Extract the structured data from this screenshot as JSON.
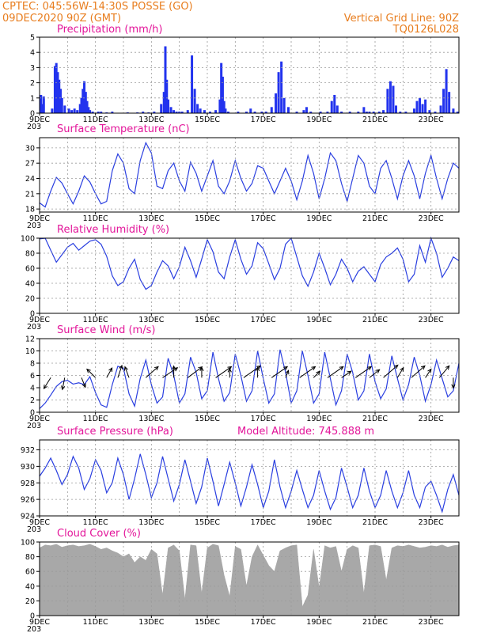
{
  "header": {
    "line1": "CPTEC:   045:56W-14:30S   POSSE (GO)",
    "line2": "09DEC2020 90Z (GMT)",
    "right1": "Vertical Grid Line: 90Z",
    "right2": "TQ0126L028"
  },
  "x_axis": {
    "day_start": 9,
    "day_end": 24,
    "tick_labels": [
      "9DEC",
      "11DEC",
      "13DEC",
      "15DEC",
      "17DEC",
      "19DEC",
      "21DEC",
      "23DEC"
    ],
    "tick_days": [
      9,
      11,
      13,
      15,
      17,
      19,
      21,
      23
    ],
    "corner_label": "203"
  },
  "chart_data": [
    {
      "id": "precip",
      "type": "bar",
      "title": "Precipitation (mm/h)",
      "ylim": [
        0,
        5
      ],
      "yticks": [
        0,
        1,
        2,
        3,
        4,
        5
      ],
      "color": "#2233ee",
      "x": [
        9.05,
        9.1,
        9.15,
        9.45,
        9.55,
        9.6,
        9.65,
        9.7,
        9.75,
        9.8,
        9.9,
        10.05,
        10.15,
        10.25,
        10.35,
        10.45,
        10.5,
        10.55,
        10.6,
        10.65,
        10.7,
        10.75,
        10.8,
        10.9,
        11.1,
        11.2,
        11.4,
        11.6,
        12.15,
        12.5,
        12.7,
        12.9,
        13.1,
        13.35,
        13.45,
        13.5,
        13.55,
        13.6,
        13.7,
        13.8,
        13.9,
        14.0,
        14.1,
        14.3,
        14.45,
        14.55,
        14.65,
        14.75,
        14.9,
        15.1,
        15.3,
        15.45,
        15.5,
        15.55,
        15.6,
        15.65,
        15.75,
        16.1,
        16.4,
        16.55,
        16.7,
        16.95,
        17.1,
        17.3,
        17.45,
        17.55,
        17.65,
        17.75,
        17.9,
        18.2,
        18.45,
        18.55,
        18.7,
        19.05,
        19.3,
        19.45,
        19.55,
        19.65,
        19.8,
        20.1,
        20.4,
        20.6,
        20.7,
        20.8,
        20.95,
        21.15,
        21.3,
        21.45,
        21.55,
        21.65,
        21.75,
        21.9,
        22.1,
        22.4,
        22.5,
        22.6,
        22.7,
        22.8,
        22.95,
        23.15,
        23.35,
        23.45,
        23.55,
        23.65,
        23.8,
        23.95
      ],
      "values": [
        1.2,
        0.6,
        1.1,
        0.3,
        3.1,
        3.3,
        2.7,
        2.2,
        1.6,
        1.0,
        0.5,
        0.3,
        0.2,
        0.3,
        0.2,
        0.6,
        1.0,
        1.6,
        2.1,
        1.4,
        0.8,
        0.4,
        0.2,
        0.1,
        0.1,
        0.1,
        0.05,
        0.1,
        0.05,
        0.05,
        0.1,
        0.05,
        0.1,
        0.6,
        1.4,
        4.4,
        2.2,
        0.9,
        0.4,
        0.2,
        0.1,
        0.1,
        0.1,
        0.2,
        3.8,
        1.6,
        0.6,
        0.3,
        0.2,
        0.1,
        0.2,
        0.9,
        3.3,
        2.4,
        0.8,
        0.3,
        0.1,
        0.1,
        0.1,
        0.3,
        0.1,
        0.1,
        0.1,
        0.4,
        1.3,
        2.7,
        3.4,
        1.0,
        0.4,
        0.1,
        0.2,
        0.4,
        0.1,
        0.1,
        0.1,
        0.8,
        1.2,
        0.5,
        0.1,
        0.1,
        0.1,
        0.4,
        0.1,
        0.1,
        0.1,
        0.1,
        0.2,
        1.6,
        2.1,
        1.8,
        0.5,
        0.1,
        0.1,
        0.3,
        0.8,
        1.0,
        0.6,
        0.9,
        0.2,
        0.1,
        0.5,
        1.6,
        2.9,
        1.4,
        0.3,
        0.1
      ]
    },
    {
      "id": "temp",
      "type": "line",
      "title": "Surface Temperature (nC)",
      "ylim": [
        17.4,
        32
      ],
      "yticks": [
        18,
        21,
        24,
        27,
        30
      ],
      "color": "#2a3fe0",
      "x": [
        9.0,
        9.2,
        9.4,
        9.6,
        9.8,
        10.0,
        10.2,
        10.4,
        10.6,
        10.8,
        11.0,
        11.2,
        11.4,
        11.6,
        11.8,
        12.0,
        12.2,
        12.4,
        12.6,
        12.8,
        13.0,
        13.2,
        13.4,
        13.6,
        13.8,
        14.0,
        14.2,
        14.4,
        14.6,
        14.8,
        15.0,
        15.2,
        15.4,
        15.6,
        15.8,
        16.0,
        16.2,
        16.4,
        16.6,
        16.8,
        17.0,
        17.2,
        17.4,
        17.6,
        17.8,
        18.0,
        18.2,
        18.4,
        18.6,
        18.8,
        19.0,
        19.2,
        19.4,
        19.6,
        19.8,
        20.0,
        20.2,
        20.4,
        20.6,
        20.8,
        21.0,
        21.2,
        21.4,
        21.6,
        21.8,
        22.0,
        22.2,
        22.4,
        22.6,
        22.8,
        23.0,
        23.2,
        23.4,
        23.6,
        23.8,
        24.0
      ],
      "values": [
        19.2,
        18.4,
        21.5,
        24.2,
        23.1,
        21.0,
        19.0,
        21.5,
        24.5,
        23.3,
        21.0,
        19.0,
        19.5,
        25.5,
        28.8,
        27.0,
        22.0,
        21.0,
        27.5,
        31.0,
        29.0,
        22.5,
        22.0,
        25.5,
        27.0,
        23.5,
        21.5,
        27.2,
        25.0,
        21.5,
        24.5,
        27.5,
        22.5,
        21.0,
        23.5,
        27.5,
        24.0,
        21.5,
        23.0,
        26.5,
        26.0,
        23.5,
        21.0,
        23.5,
        26.0,
        23.5,
        19.8,
        23.5,
        28.5,
        25.0,
        20.0,
        24.0,
        29.0,
        27.5,
        23.0,
        19.5,
        24.0,
        28.5,
        27.0,
        22.5,
        21.0,
        26.0,
        27.5,
        24.0,
        20.0,
        24.5,
        27.5,
        24.5,
        20.0,
        25.0,
        28.5,
        24.0,
        20.0,
        24.0,
        27.0,
        26.0
      ]
    },
    {
      "id": "rh",
      "type": "line",
      "title": "Relative Humidity (%)",
      "ylim": [
        0,
        100
      ],
      "yticks": [
        0,
        20,
        40,
        60,
        80,
        100
      ],
      "color": "#2a3fe0",
      "x": [
        9.0,
        9.2,
        9.4,
        9.6,
        9.8,
        10.0,
        10.2,
        10.4,
        10.6,
        10.8,
        11.0,
        11.2,
        11.4,
        11.6,
        11.8,
        12.0,
        12.2,
        12.4,
        12.6,
        12.8,
        13.0,
        13.2,
        13.4,
        13.6,
        13.8,
        14.0,
        14.2,
        14.4,
        14.6,
        14.8,
        15.0,
        15.2,
        15.4,
        15.6,
        15.8,
        16.0,
        16.2,
        16.4,
        16.6,
        16.8,
        17.0,
        17.2,
        17.4,
        17.6,
        17.8,
        18.0,
        18.2,
        18.4,
        18.6,
        18.8,
        19.0,
        19.2,
        19.4,
        19.6,
        19.8,
        20.0,
        20.2,
        20.4,
        20.6,
        20.8,
        21.0,
        21.2,
        21.4,
        21.6,
        21.8,
        22.0,
        22.2,
        22.4,
        22.6,
        22.8,
        23.0,
        23.2,
        23.4,
        23.6,
        23.8,
        24.0
      ],
      "values": [
        99,
        100,
        84,
        68,
        78,
        88,
        93,
        84,
        90,
        96,
        98,
        92,
        76,
        50,
        37,
        42,
        60,
        72,
        45,
        32,
        37,
        55,
        70,
        63,
        46,
        62,
        88,
        70,
        48,
        72,
        98,
        82,
        55,
        46,
        75,
        98,
        72,
        52,
        63,
        94,
        86,
        66,
        45,
        60,
        92,
        100,
        75,
        50,
        36,
        55,
        80,
        60,
        38,
        52,
        72,
        60,
        42,
        56,
        62,
        52,
        42,
        65,
        75,
        80,
        87,
        72,
        42,
        52,
        90,
        68,
        100,
        80,
        48,
        60,
        75,
        70
      ]
    },
    {
      "id": "wind",
      "type": "line",
      "title": "Surface Wind (m/s)",
      "ylim": [
        0,
        12
      ],
      "yticks": [
        0,
        2,
        4,
        6,
        8,
        10,
        12
      ],
      "color": "#2a3fe0",
      "x": [
        9.0,
        9.2,
        9.4,
        9.6,
        9.8,
        10.0,
        10.2,
        10.4,
        10.6,
        10.8,
        11.0,
        11.2,
        11.4,
        11.6,
        11.8,
        12.0,
        12.2,
        12.4,
        12.6,
        12.8,
        13.0,
        13.2,
        13.4,
        13.6,
        13.8,
        14.0,
        14.2,
        14.4,
        14.6,
        14.8,
        15.0,
        15.2,
        15.4,
        15.6,
        15.8,
        16.0,
        16.2,
        16.4,
        16.6,
        16.8,
        17.0,
        17.2,
        17.4,
        17.6,
        17.8,
        18.0,
        18.2,
        18.4,
        18.6,
        18.8,
        19.0,
        19.2,
        19.4,
        19.6,
        19.8,
        20.0,
        20.2,
        20.4,
        20.6,
        20.8,
        21.0,
        21.2,
        21.4,
        21.6,
        21.8,
        22.0,
        22.2,
        22.4,
        22.6,
        22.8,
        23.0,
        23.2,
        23.4,
        23.6,
        23.8,
        24.0
      ],
      "values": [
        0.6,
        1.5,
        2.8,
        4.2,
        5.0,
        5.2,
        4.6,
        4.8,
        4.5,
        5.8,
        3.2,
        1.2,
        0.8,
        4.5,
        7.5,
        7.2,
        3.0,
        1.0,
        5.5,
        8.5,
        4.5,
        1.5,
        2.5,
        8.8,
        6.0,
        1.5,
        3.0,
        9.0,
        6.5,
        2.2,
        3.5,
        9.8,
        5.5,
        1.8,
        3.2,
        9.5,
        6.0,
        1.8,
        3.5,
        10.0,
        5.5,
        1.5,
        3.0,
        10.2,
        6.5,
        1.5,
        3.5,
        10.0,
        6.0,
        1.5,
        3.0,
        9.8,
        5.5,
        1.2,
        3.5,
        9.5,
        6.5,
        2.0,
        3.5,
        9.5,
        5.0,
        2.2,
        3.8,
        9.2,
        5.5,
        2.0,
        4.5,
        9.0,
        6.0,
        1.8,
        4.5,
        8.5,
        5.5,
        2.5,
        3.5,
        8.0
      ]
    },
    {
      "id": "pressure",
      "type": "line",
      "title": "Surface Pressure (hPa)",
      "annotation": "Model Altitude: 745.888  m",
      "ylim": [
        924,
        933.2
      ],
      "yticks": [
        924,
        926,
        928,
        930,
        932
      ],
      "color": "#2a3fe0",
      "x": [
        9.0,
        9.2,
        9.4,
        9.6,
        9.8,
        10.0,
        10.2,
        10.4,
        10.6,
        10.8,
        11.0,
        11.2,
        11.4,
        11.6,
        11.8,
        12.0,
        12.2,
        12.4,
        12.6,
        12.8,
        13.0,
        13.2,
        13.4,
        13.6,
        13.8,
        14.0,
        14.2,
        14.4,
        14.6,
        14.8,
        15.0,
        15.2,
        15.4,
        15.6,
        15.8,
        16.0,
        16.2,
        16.4,
        16.6,
        16.8,
        17.0,
        17.2,
        17.4,
        17.6,
        17.8,
        18.0,
        18.2,
        18.4,
        18.6,
        18.8,
        19.0,
        19.2,
        19.4,
        19.6,
        19.8,
        20.0,
        20.2,
        20.4,
        20.6,
        20.8,
        21.0,
        21.2,
        21.4,
        21.6,
        21.8,
        22.0,
        22.2,
        22.4,
        22.6,
        22.8,
        23.0,
        23.2,
        23.4,
        23.6,
        23.8,
        24.0
      ],
      "values": [
        928.8,
        929.8,
        931.0,
        929.5,
        927.8,
        929.0,
        931.2,
        929.8,
        927.2,
        928.5,
        930.8,
        929.5,
        926.8,
        928.0,
        931.0,
        929.0,
        926.0,
        928.5,
        931.5,
        929.0,
        926.2,
        928.0,
        931.2,
        928.5,
        925.8,
        927.8,
        930.8,
        928.2,
        925.5,
        927.5,
        931.0,
        928.2,
        925.2,
        927.8,
        930.5,
        928.0,
        925.2,
        927.5,
        930.2,
        927.8,
        925.0,
        927.0,
        930.8,
        927.5,
        925.0,
        927.0,
        929.5,
        927.2,
        925.0,
        926.5,
        929.5,
        927.0,
        924.8,
        926.2,
        929.8,
        927.5,
        925.0,
        926.5,
        929.8,
        927.0,
        925.0,
        926.5,
        929.5,
        927.0,
        925.0,
        926.8,
        929.5,
        926.5,
        925.0,
        927.5,
        928.2,
        926.5,
        924.5,
        927.2,
        929.0,
        926.5
      ]
    },
    {
      "id": "cloud",
      "type": "area",
      "title": "Cloud Cover (%)",
      "ylim": [
        0,
        100
      ],
      "yticks": [
        0,
        20,
        40,
        60,
        80,
        100
      ],
      "color": "#a8a8a8",
      "x": [
        9.0,
        9.2,
        9.4,
        9.6,
        9.8,
        10.0,
        10.2,
        10.4,
        10.6,
        10.8,
        11.0,
        11.2,
        11.4,
        11.6,
        11.8,
        12.0,
        12.2,
        12.4,
        12.6,
        12.8,
        13.0,
        13.2,
        13.4,
        13.6,
        13.8,
        14.0,
        14.2,
        14.4,
        14.6,
        14.8,
        15.0,
        15.2,
        15.4,
        15.6,
        15.8,
        16.0,
        16.2,
        16.4,
        16.6,
        16.8,
        17.0,
        17.2,
        17.4,
        17.6,
        17.8,
        18.0,
        18.2,
        18.4,
        18.6,
        18.8,
        19.0,
        19.2,
        19.4,
        19.6,
        19.8,
        20.0,
        20.2,
        20.4,
        20.6,
        20.8,
        21.0,
        21.2,
        21.4,
        21.6,
        21.8,
        22.0,
        22.2,
        22.4,
        22.6,
        22.8,
        23.0,
        23.2,
        23.4,
        23.6,
        23.8,
        24.0
      ],
      "values": [
        92,
        96,
        95,
        97,
        93,
        95,
        96,
        94,
        95,
        97,
        94,
        90,
        92,
        88,
        85,
        80,
        84,
        72,
        80,
        75,
        90,
        84,
        28,
        92,
        96,
        88,
        22,
        96,
        95,
        30,
        92,
        97,
        95,
        55,
        26,
        94,
        90,
        40,
        80,
        96,
        82,
        68,
        60,
        88,
        92,
        95,
        96,
        12,
        28,
        90,
        38,
        95,
        92,
        94,
        60,
        90,
        95,
        92,
        30,
        95,
        96,
        94,
        48,
        92,
        95,
        94,
        96,
        94,
        92,
        93,
        95,
        94,
        96,
        93,
        95,
        96
      ]
    },
    {
      "id": "wind_direction_arrows",
      "type": "scatter",
      "x": [
        9.4,
        9.9,
        10.5,
        11.0,
        11.4,
        11.8,
        12.2,
        12.8,
        13.4,
        13.8,
        14.3,
        14.8,
        15.3,
        15.8,
        16.3,
        16.8,
        17.3,
        17.8,
        18.3,
        18.8,
        19.3,
        19.8,
        20.3,
        20.8,
        21.3,
        21.8,
        22.3,
        22.8,
        23.3,
        23.8
      ],
      "u": [
        -0.5,
        -0.2,
        0.4,
        -0.6,
        0.5,
        0.3,
        -0.3,
        0.9,
        0.9,
        0.0,
        0.8,
        0.0,
        1.0,
        0.0,
        1.0,
        0.0,
        1.0,
        0.2,
        1.0,
        0.3,
        1.0,
        0.6,
        1.0,
        0.5,
        0.8,
        0.3,
        0.8,
        0.2,
        0.5,
        0.0
      ],
      "v": [
        -0.8,
        -1.0,
        -1.0,
        0.6,
        0.9,
        0.9,
        0.8,
        0.8,
        0.6,
        0.9,
        0.6,
        0.8,
        0.7,
        0.9,
        0.7,
        0.9,
        0.7,
        0.5,
        0.7,
        0.3,
        0.7,
        0.4,
        0.7,
        0.4,
        0.7,
        0.5,
        0.7,
        0.3,
        0.6,
        -0.8
      ],
      "speed": [
        3.5,
        3.2,
        2.5,
        3.2,
        2.8,
        3.5,
        3.0,
        5.0,
        5.5,
        3.0,
        5.5,
        2.5,
        6.0,
        2.0,
        6.5,
        2.5,
        6.0,
        1.5,
        6.0,
        2.0,
        6.0,
        3.0,
        6.0,
        3.5,
        6.0,
        3.0,
        5.5,
        2.5,
        4.5,
        2.5
      ]
    }
  ]
}
